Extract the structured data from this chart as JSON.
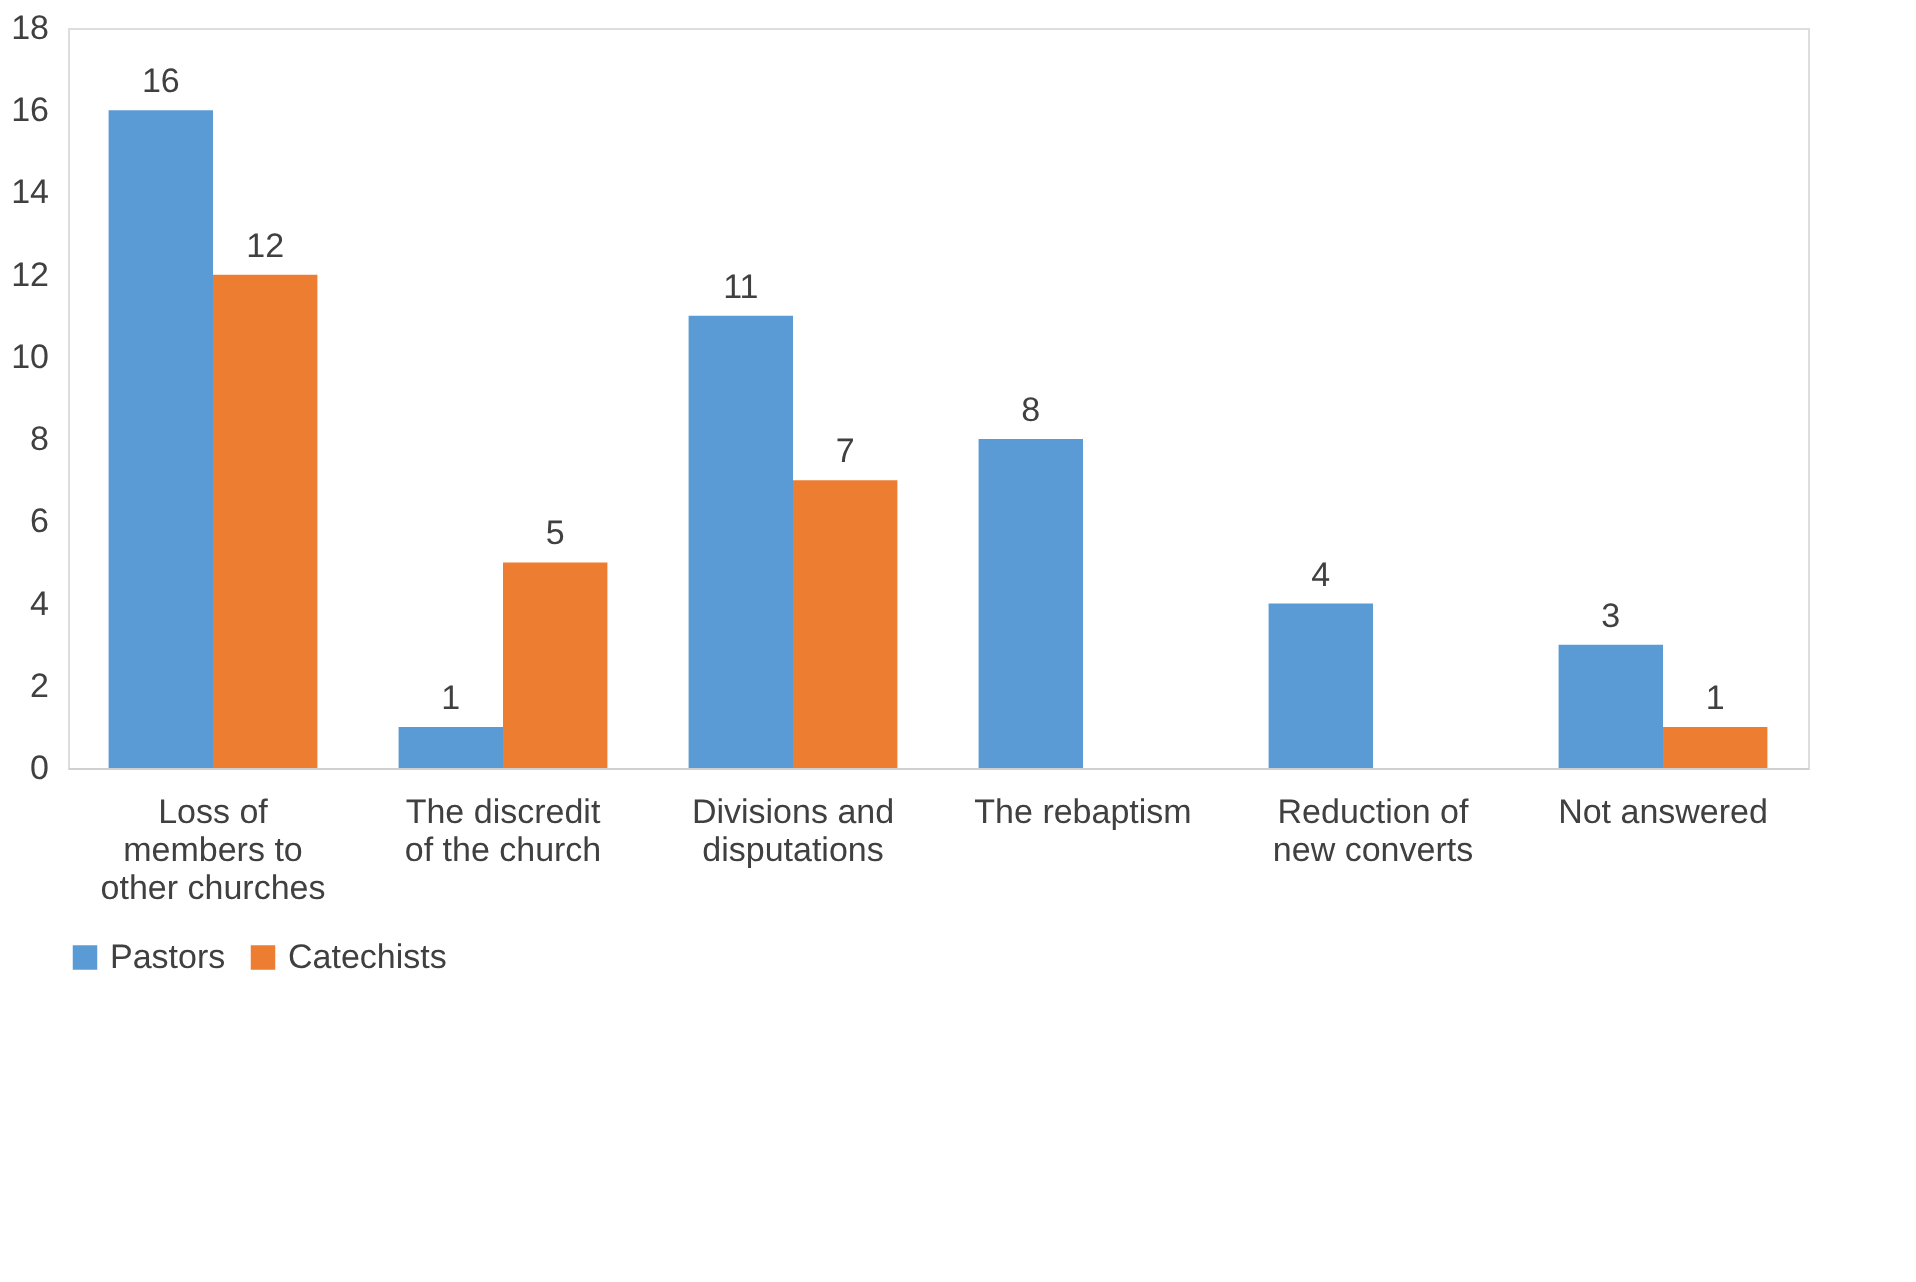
{
  "chart_data": {
    "type": "bar",
    "categories": [
      "Loss of members to other churches",
      "The discredit of the church",
      "Divisions and disputations",
      "The rebaptism",
      "Reduction of new converts",
      "Not answered"
    ],
    "series": [
      {
        "name": "Pastors",
        "color": "#5b9bd5",
        "values": [
          16,
          1,
          11,
          8,
          4,
          3
        ]
      },
      {
        "name": "Catechists",
        "color": "#ed7d31",
        "values": [
          12,
          5,
          7,
          null,
          null,
          1
        ]
      }
    ],
    "ylim": [
      0,
      18
    ],
    "yticks": [
      0,
      2,
      4,
      6,
      8,
      10,
      12,
      14,
      16,
      18
    ],
    "grid": false,
    "legend": "bottom",
    "data_labels": true
  }
}
